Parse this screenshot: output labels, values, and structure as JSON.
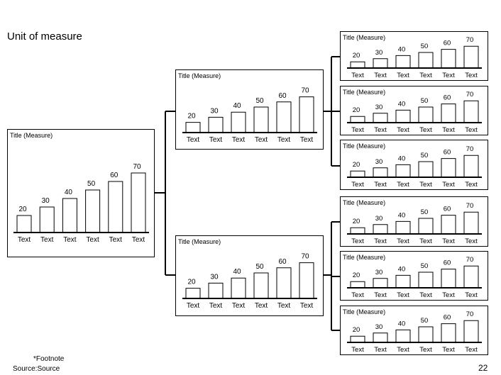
{
  "page": {
    "unit_of_measure": "Unit of measure",
    "footnote": "*Footnote",
    "source": "Source:Source",
    "page_number": "22"
  },
  "chart_data": [
    {
      "id": "root",
      "type": "bar",
      "title": "Title (Measure)",
      "categories": [
        "Text",
        "Text",
        "Text",
        "Text",
        "Text",
        "Text"
      ],
      "values": [
        20,
        30,
        40,
        50,
        60,
        70
      ]
    },
    {
      "id": "mid-top",
      "type": "bar",
      "title": "Title (Measure)",
      "categories": [
        "Text",
        "Text",
        "Text",
        "Text",
        "Text",
        "Text"
      ],
      "values": [
        20,
        30,
        40,
        50,
        60,
        70
      ]
    },
    {
      "id": "mid-bottom",
      "type": "bar",
      "title": "Title (Measure)",
      "categories": [
        "Text",
        "Text",
        "Text",
        "Text",
        "Text",
        "Text"
      ],
      "values": [
        20,
        30,
        40,
        50,
        60,
        70
      ]
    },
    {
      "id": "leaf-1",
      "type": "bar",
      "title": "Title (Measure)",
      "categories": [
        "Text",
        "Text",
        "Text",
        "Text",
        "Text",
        "Text"
      ],
      "values": [
        20,
        30,
        40,
        50,
        60,
        70
      ]
    },
    {
      "id": "leaf-2",
      "type": "bar",
      "title": "Title (Measure)",
      "categories": [
        "Text",
        "Text",
        "Text",
        "Text",
        "Text",
        "Text"
      ],
      "values": [
        20,
        30,
        40,
        50,
        60,
        70
      ]
    },
    {
      "id": "leaf-3",
      "type": "bar",
      "title": "Title (Measure)",
      "categories": [
        "Text",
        "Text",
        "Text",
        "Text",
        "Text",
        "Text"
      ],
      "values": [
        20,
        30,
        40,
        50,
        60,
        70
      ]
    },
    {
      "id": "leaf-4",
      "type": "bar",
      "title": "Title (Measure)",
      "categories": [
        "Text",
        "Text",
        "Text",
        "Text",
        "Text",
        "Text"
      ],
      "values": [
        20,
        30,
        40,
        50,
        60,
        70
      ]
    },
    {
      "id": "leaf-5",
      "type": "bar",
      "title": "Title (Measure)",
      "categories": [
        "Text",
        "Text",
        "Text",
        "Text",
        "Text",
        "Text"
      ],
      "values": [
        20,
        30,
        40,
        50,
        60,
        70
      ]
    },
    {
      "id": "leaf-6",
      "type": "bar",
      "title": "Title (Measure)",
      "categories": [
        "Text",
        "Text",
        "Text",
        "Text",
        "Text",
        "Text"
      ],
      "values": [
        20,
        30,
        40,
        50,
        60,
        70
      ]
    }
  ]
}
